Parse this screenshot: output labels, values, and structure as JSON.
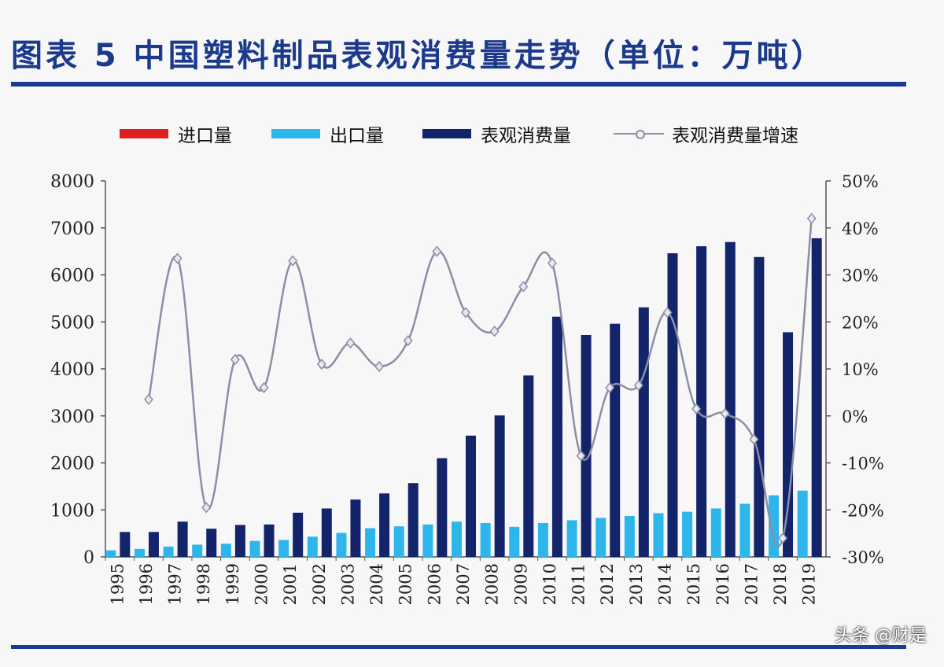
{
  "header": {
    "title": "图表 5   中国塑料制品表观消费量走势（单位：万吨）"
  },
  "legend": {
    "items": [
      {
        "label": "进口量",
        "color": "#e02020",
        "kind": "bar"
      },
      {
        "label": "出口量",
        "color": "#2eb6ea",
        "kind": "bar"
      },
      {
        "label": "表观消费量",
        "color": "#14246a",
        "kind": "bar"
      },
      {
        "label": "表观消费量增速",
        "color": "#8a8fa6",
        "kind": "line"
      }
    ]
  },
  "watermark": {
    "text": "头条 @财是"
  },
  "colors": {
    "import": "#e02020",
    "export": "#2eb6ea",
    "consumption": "#14246a",
    "growth_line": "#8a8fa6",
    "axis": "#555555",
    "title_blue": "#1c3a8c"
  },
  "chart_data": {
    "type": "bar",
    "title": "中国塑料制品表观消费量走势（单位：万吨）",
    "categories": [
      "1995",
      "1996",
      "1997",
      "1998",
      "1999",
      "2000",
      "2001",
      "2002",
      "2003",
      "2004",
      "2005",
      "2006",
      "2007",
      "2008",
      "2009",
      "2010",
      "2011",
      "2012",
      "2013",
      "2014",
      "2015",
      "2016",
      "2017",
      "2018",
      "2019"
    ],
    "y_left": {
      "ylim": [
        0,
        8000
      ],
      "ticks": [
        "0",
        "1000",
        "2000",
        "3000",
        "4000",
        "5000",
        "6000",
        "7000",
        "8000"
      ]
    },
    "y_right": {
      "ylim": [
        -30,
        50
      ],
      "ticks": [
        "-30%",
        "-20%",
        "-10%",
        "0%",
        "10%",
        "20%",
        "30%",
        "40%",
        "50%"
      ]
    },
    "series": [
      {
        "name": "进口量",
        "type": "bar",
        "axis": "left",
        "values": [
          0,
          0,
          0,
          0,
          0,
          0,
          0,
          0,
          0,
          0,
          0,
          0,
          0,
          0,
          0,
          0,
          0,
          0,
          0,
          0,
          0,
          0,
          0,
          0,
          0
        ]
      },
      {
        "name": "出口量",
        "type": "bar",
        "axis": "left",
        "values": [
          140,
          170,
          220,
          260,
          280,
          340,
          360,
          430,
          510,
          610,
          650,
          690,
          750,
          720,
          640,
          720,
          780,
          830,
          870,
          930,
          960,
          1030,
          1130,
          1310,
          1410
        ]
      },
      {
        "name": "表观消费量",
        "type": "bar",
        "axis": "left",
        "values": [
          530,
          530,
          750,
          600,
          680,
          690,
          940,
          1030,
          1220,
          1350,
          1570,
          2100,
          2580,
          3010,
          3860,
          5110,
          4720,
          4960,
          5310,
          6460,
          6610,
          6700,
          6380,
          4780,
          6780
        ]
      },
      {
        "name": "表观消费量增速",
        "type": "line",
        "axis": "right",
        "values": [
          null,
          3.5,
          33.5,
          -19.5,
          12,
          6,
          33,
          11,
          15.5,
          10.5,
          16,
          35,
          22,
          18,
          27.5,
          32.5,
          -8.5,
          6,
          6.5,
          22,
          1.5,
          0.5,
          -5,
          -26,
          42
        ]
      }
    ],
    "legend_position": "top",
    "grid": false
  }
}
